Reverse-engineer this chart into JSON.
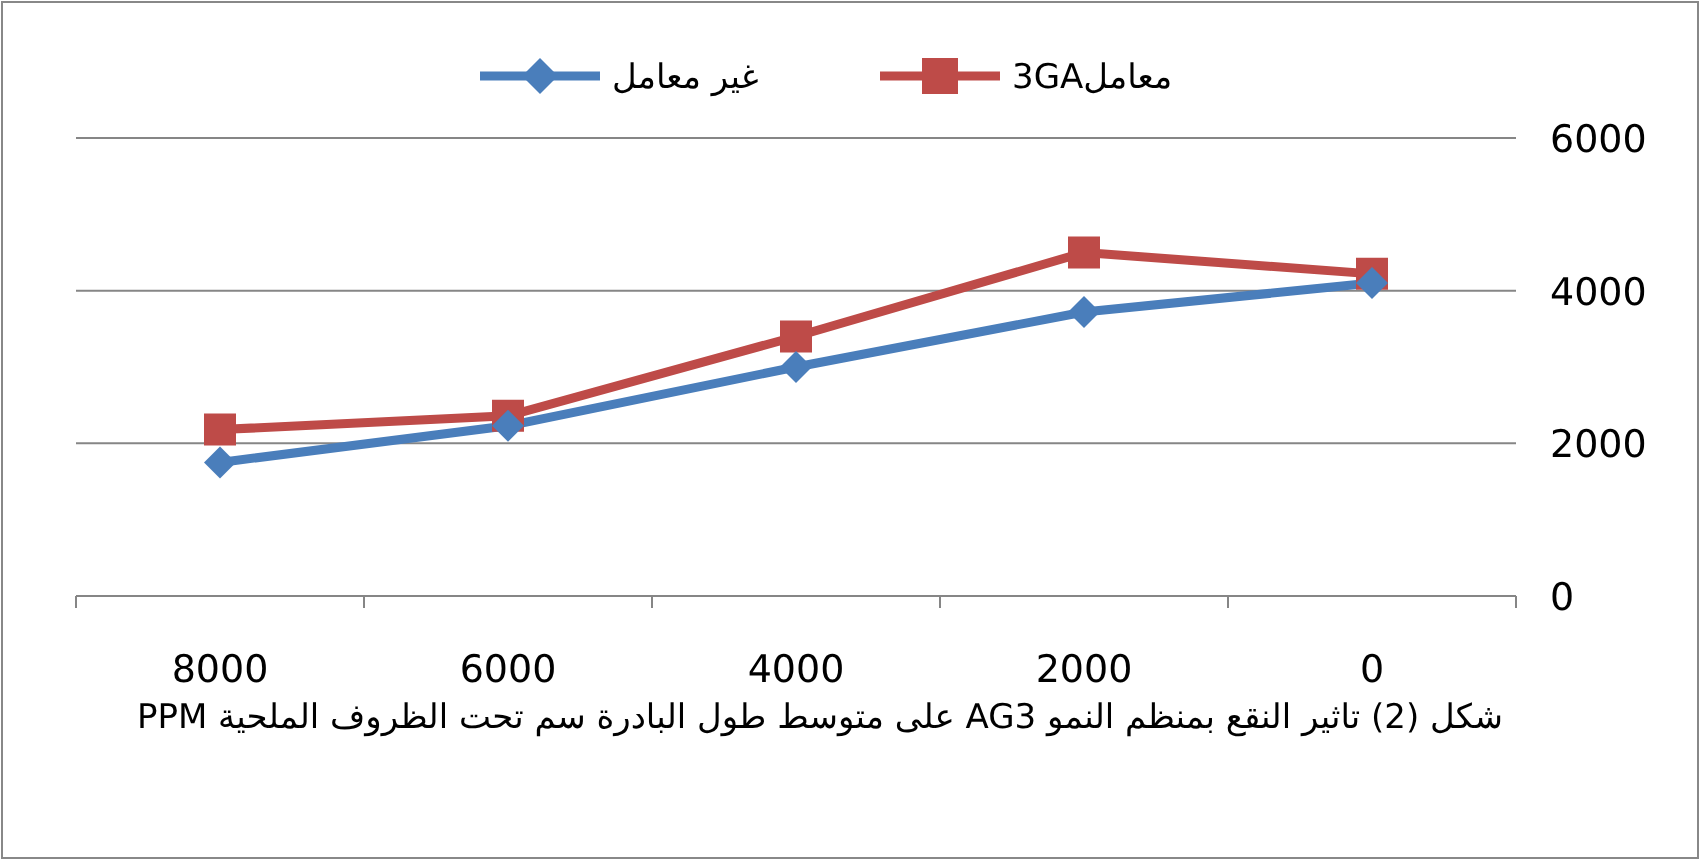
{
  "chart_data": {
    "type": "line",
    "xlabel": "شكل (2) تاثير النقع بمنظم النمو AG3 على متوسط طول البادرة سم تحت الظروف الملحية PPM",
    "categories": [
      "8000",
      "6000",
      "4000",
      "2000",
      "0"
    ],
    "series": [
      {
        "name": "غير معامل",
        "color": "#4a7ebb",
        "marker": "diamond",
        "values": [
          1750,
          2230,
          3000,
          3720,
          4100
        ]
      },
      {
        "name": "معامل3GA",
        "color": "#be4b48",
        "marker": "square",
        "values": [
          2180,
          2360,
          3400,
          4500,
          4220
        ]
      }
    ],
    "ylim": [
      0,
      6000
    ],
    "yticks": [
      0,
      2000,
      4000,
      6000
    ],
    "grid": "y",
    "legend": "top",
    "line_style": "solid"
  }
}
